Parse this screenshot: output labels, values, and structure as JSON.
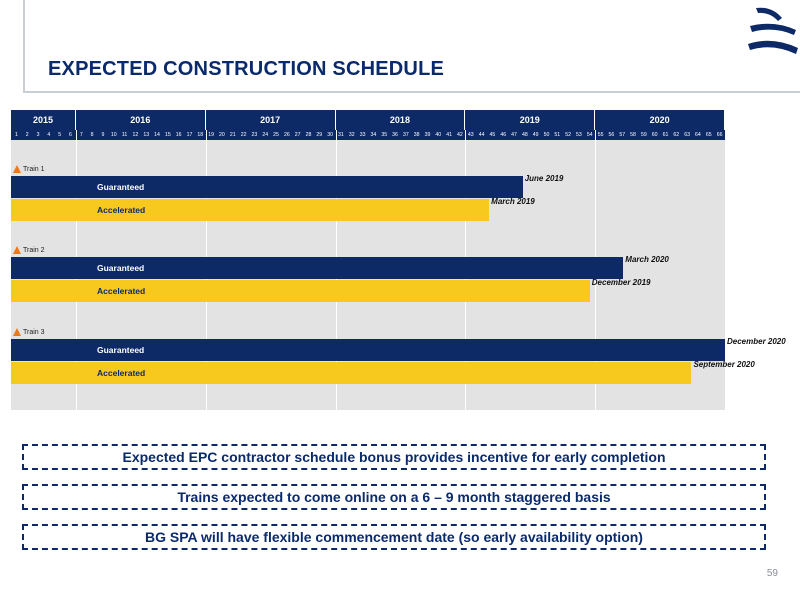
{
  "header": {
    "title": "EXPECTED CONSTRUCTION SCHEDULE"
  },
  "logo": {
    "icon": "company-logo-icon",
    "color": "#0d2a66"
  },
  "gantt": {
    "years": [
      {
        "label": "2015",
        "start_month": 1,
        "end_month": 6
      },
      {
        "label": "2016",
        "start_month": 7,
        "end_month": 18
      },
      {
        "label": "2017",
        "start_month": 19,
        "end_month": 30
      },
      {
        "label": "2018",
        "start_month": 31,
        "end_month": 42
      },
      {
        "label": "2019",
        "start_month": 43,
        "end_month": 54
      },
      {
        "label": "2020",
        "start_month": 55,
        "end_month": 66
      }
    ],
    "months": [
      "1",
      "2",
      "3",
      "4",
      "5",
      "6",
      "7",
      "8",
      "9",
      "10",
      "11",
      "12",
      "13",
      "14",
      "15",
      "16",
      "17",
      "18",
      "19",
      "20",
      "21",
      "22",
      "23",
      "24",
      "25",
      "26",
      "27",
      "28",
      "29",
      "30",
      "31",
      "32",
      "33",
      "34",
      "35",
      "36",
      "37",
      "38",
      "39",
      "40",
      "41",
      "42",
      "43",
      "44",
      "45",
      "46",
      "47",
      "48",
      "49",
      "50",
      "51",
      "52",
      "53",
      "54",
      "55",
      "56",
      "57",
      "58",
      "59",
      "60",
      "61",
      "62",
      "63",
      "64",
      "65",
      "66"
    ],
    "trains": [
      {
        "label": "Train 1",
        "bars": [
          {
            "label": "Guaranteed",
            "kind": "guar",
            "end_month": 47.3,
            "date": "June 2019"
          },
          {
            "label": "Accelerated",
            "kind": "acc",
            "end_month": 44.2,
            "date": "March 2019"
          }
        ]
      },
      {
        "label": "Train 2",
        "bars": [
          {
            "label": "Guaranteed",
            "kind": "guar",
            "end_month": 56.6,
            "date": "March 2020"
          },
          {
            "label": "Accelerated",
            "kind": "acc",
            "end_month": 53.5,
            "date": "December 2019"
          }
        ]
      },
      {
        "label": "Train 3",
        "bars": [
          {
            "label": "Guaranteed",
            "kind": "guar",
            "end_month": 66,
            "date": "December 2020"
          },
          {
            "label": "Accelerated",
            "kind": "acc",
            "end_month": 62.9,
            "date": "September 2020"
          }
        ]
      }
    ],
    "colors": {
      "guaranteed": "#0d2a66",
      "accelerated": "#f7c91f",
      "marker": "#e87a1c"
    }
  },
  "notes": [
    "Expected EPC contractor schedule bonus provides incentive for early completion",
    "Trains expected to come online on a 6 – 9 month staggered basis",
    "BG SPA will have flexible commencement date (so early availability option)"
  ],
  "footer": {
    "page_number": "59"
  }
}
